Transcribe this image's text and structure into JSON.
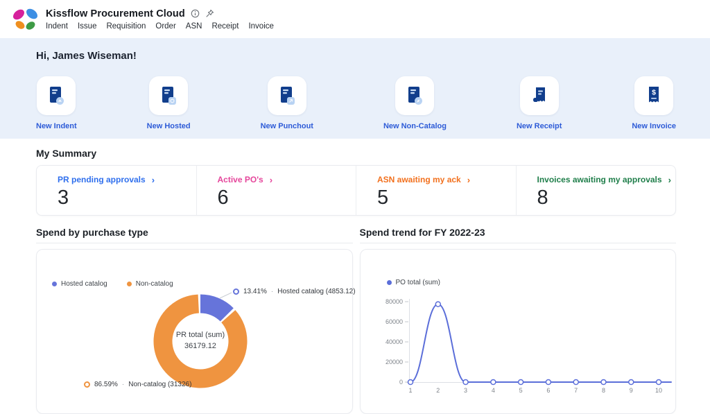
{
  "header": {
    "title": "Kissflow Procurement Cloud",
    "icons": {
      "info": "info-icon",
      "pin": "pin-icon"
    },
    "nav": [
      "Indent",
      "Issue",
      "Requisition",
      "Order",
      "ASN",
      "Receipt",
      "Invoice"
    ]
  },
  "greeting": "Hi, James Wiseman!",
  "quick_actions": [
    {
      "label": "New Indent",
      "icon": "document-indent-icon"
    },
    {
      "label": "New Hosted",
      "icon": "document-hosted-icon"
    },
    {
      "label": "New Punchout",
      "icon": "document-punchout-icon"
    },
    {
      "label": "New Non-Catalog",
      "icon": "document-non-catalog-icon"
    },
    {
      "label": "New Receipt",
      "icon": "receipt-icon"
    },
    {
      "label": "New Invoice",
      "icon": "invoice-dollar-icon"
    }
  ],
  "summary": {
    "heading": "My Summary",
    "cards": [
      {
        "label": "PR pending approvals",
        "value": "3",
        "color": "#2f6fed"
      },
      {
        "label": "Active PO's",
        "value": "6",
        "color": "#e5469b"
      },
      {
        "label": "ASN awaiting my ack",
        "value": "5",
        "color": "#f2701d"
      },
      {
        "label": "Invoices awaiting my approvals",
        "value": "8",
        "color": "#1f7e4a"
      }
    ]
  },
  "ui": {
    "dot_separator": "·",
    "chevron": "›"
  },
  "chart_data": [
    {
      "type": "pie",
      "title": "Spend by purchase type",
      "center_label": "PR total (sum)",
      "center_value": "36179.12",
      "legend_position": "top-left",
      "slices": [
        {
          "label": "Hosted catalog",
          "value": 4853.12,
          "percent": "13.41%",
          "percent_value": 13.41,
          "color": "#6674da",
          "callout": "Hosted catalog (4853.12)"
        },
        {
          "label": "Non-catalog",
          "value": 31326,
          "percent": "86.59%",
          "percent_value": 86.59,
          "color": "#ef9440",
          "callout": "Non-catalog (31326)"
        }
      ]
    },
    {
      "type": "line",
      "title": "Spend trend for FY 2022-23",
      "legend": "PO total (sum)",
      "x": [
        1,
        2,
        3,
        4,
        5,
        6,
        7,
        8,
        9,
        10
      ],
      "values": [
        0,
        77500,
        0,
        0,
        0,
        0,
        0,
        0,
        0,
        0
      ],
      "ylim": [
        0,
        80000
      ],
      "yticks": [
        0,
        20000,
        40000,
        60000,
        80000
      ],
      "grid": false,
      "marker": "open-circle",
      "color": "#5b6ed9"
    }
  ]
}
